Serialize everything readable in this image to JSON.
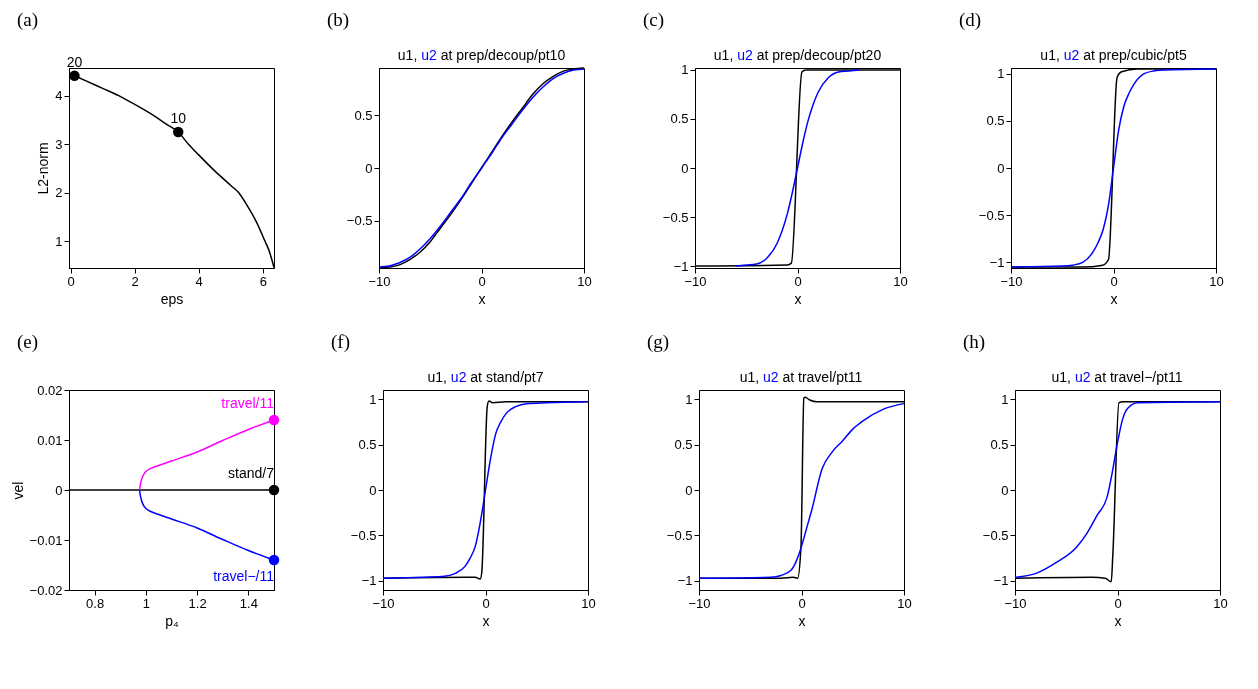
{
  "chart_data": [
    {
      "type": "line",
      "annotations": [
        "(a)",
        {
          "text": "20",
          "x": 0.12,
          "y": 4.41
        },
        {
          "text": "10",
          "x": 3.36,
          "y": 3.25
        }
      ],
      "xlabel": "eps",
      "ylabel": "L2-norm",
      "xlim": [
        -0.05,
        6.35
      ],
      "xticks": [
        0,
        2,
        4,
        6
      ],
      "ylim": [
        0.45,
        4.57
      ],
      "yticks": [
        1,
        2,
        3,
        4
      ],
      "series": [
        {
          "color": "#000000",
          "x": [
            0.12,
            0.5,
            1,
            1.5,
            2,
            2.5,
            3,
            3.36,
            3.68,
            4,
            4.5,
            5,
            5.25,
            5.5,
            5.8,
            6.07,
            6.2,
            6.35
          ],
          "values": [
            4.41,
            4.3,
            4.15,
            4.0,
            3.82,
            3.63,
            3.41,
            3.25,
            3.0,
            2.78,
            2.45,
            2.15,
            2.0,
            1.75,
            1.4,
            1.0,
            0.8,
            0.46
          ]
        },
        {
          "type": "scatter",
          "marker": "circle",
          "color": "#000000",
          "x": [
            0.12,
            3.36
          ],
          "values": [
            4.41,
            3.25
          ]
        }
      ]
    },
    {
      "type": "line",
      "title": "u1, u2 at prep/decoup/pt10",
      "annotations": [
        "(b)"
      ],
      "xlabel": "x",
      "xlim": [
        -10,
        10
      ],
      "xticks": [
        -10,
        0,
        10
      ],
      "ylim": [
        -0.95,
        0.95
      ],
      "yticks": [
        -0.5,
        0,
        0.5
      ],
      "series": [
        {
          "color": "#000000",
          "x": [
            -10,
            -9,
            -8,
            -7,
            -6,
            -5,
            -4,
            -3,
            -2,
            -1,
            0,
            1,
            2,
            3,
            4,
            5,
            6,
            7,
            8,
            9,
            10
          ],
          "values": [
            -0.95,
            -0.94,
            -0.92,
            -0.87,
            -0.8,
            -0.7,
            -0.57,
            -0.44,
            -0.3,
            -0.15,
            0,
            0.15,
            0.3,
            0.44,
            0.57,
            0.7,
            0.8,
            0.87,
            0.92,
            0.94,
            0.95
          ]
        },
        {
          "color": "#0000ff",
          "x": [
            -10,
            -9,
            -8,
            -7,
            -6,
            -5,
            -4,
            -3,
            -2,
            -1,
            0,
            1,
            2,
            3,
            4,
            5,
            6,
            7,
            8,
            9,
            10
          ],
          "values": [
            -0.94,
            -0.93,
            -0.9,
            -0.85,
            -0.77,
            -0.67,
            -0.55,
            -0.42,
            -0.29,
            -0.14,
            0,
            0.14,
            0.29,
            0.42,
            0.55,
            0.67,
            0.77,
            0.85,
            0.9,
            0.93,
            0.94
          ]
        }
      ]
    },
    {
      "type": "line",
      "title": "u1, u2 at prep/decoup/pt20",
      "annotations": [
        "(c)"
      ],
      "xlabel": "x",
      "xlim": [
        -10,
        10
      ],
      "xticks": [
        -10,
        0,
        10
      ],
      "ylim": [
        -1.02,
        1.02
      ],
      "yticks": [
        -1,
        -0.5,
        0,
        0.5,
        1
      ],
      "series": [
        {
          "color": "#000000",
          "x": [
            -10,
            -1,
            -0.6,
            0.43,
            0.8,
            10
          ],
          "values": [
            -1,
            -0.99,
            -0.97,
            0.98,
            1,
            1
          ]
        },
        {
          "color": "#0000ff",
          "x": [
            -6,
            -5,
            -4,
            -3,
            -2,
            -1.5,
            -1,
            -0.5,
            0,
            0.5,
            1,
            1.5,
            2,
            3,
            4,
            5,
            6
          ],
          "values": [
            -1,
            -0.99,
            -0.98,
            -0.92,
            -0.77,
            -0.64,
            -0.47,
            -0.25,
            0,
            0.25,
            0.47,
            0.64,
            0.77,
            0.92,
            0.98,
            0.99,
            1
          ]
        }
      ]
    },
    {
      "type": "line",
      "title": "u1, u2 at prep/cubic/pt5",
      "annotations": [
        "(d)"
      ],
      "xlabel": "x",
      "xlim": [
        -10,
        10
      ],
      "xticks": [
        -10,
        0,
        10
      ],
      "ylim": [
        -1.06,
        1.06
      ],
      "yticks": [
        -1,
        -0.5,
        0,
        0.5,
        1
      ],
      "series": [
        {
          "color": "#000000",
          "x": [
            -10,
            -3,
            -1.06,
            -0.49,
            0.35,
            0.79,
            2.3,
            10
          ],
          "values": [
            -1.05,
            -1.05,
            -1.03,
            -0.97,
            0.96,
            1.02,
            1.05,
            1.05
          ]
        },
        {
          "color": "#0000ff",
          "x": [
            -10,
            -5,
            -4,
            -3,
            -2,
            -1.5,
            -1,
            -0.5,
            0,
            0.5,
            1,
            1.5,
            2,
            3,
            4,
            5,
            10
          ],
          "values": [
            -1.05,
            -1.04,
            -1.03,
            -1.0,
            -0.89,
            -0.79,
            -0.65,
            -0.4,
            0,
            0.4,
            0.65,
            0.79,
            0.89,
            1.0,
            1.03,
            1.04,
            1.05
          ]
        }
      ]
    },
    {
      "type": "line",
      "annotations": [
        "(e)"
      ],
      "xlabel": "p₄",
      "ylabel": "vel",
      "xlim": [
        0.7,
        1.5
      ],
      "xticks": [
        0.8,
        1,
        1.2,
        1.4
      ],
      "ylim": [
        -0.02,
        0.02
      ],
      "yticks": [
        -0.02,
        -0.01,
        0,
        0.01,
        0.02
      ],
      "series": [
        {
          "name": "stand/7",
          "color": "#000000",
          "x": [
            0.7,
            1.5
          ],
          "values": [
            0,
            0
          ]
        },
        {
          "name": "travel/11",
          "color": "#ff00ff",
          "x": [
            0.975,
            0.98,
            1.0,
            1.05,
            1.1,
            1.2,
            1.3,
            1.4,
            1.5
          ],
          "values": [
            0,
            0.0015,
            0.0037,
            0.0049,
            0.0058,
            0.0076,
            0.0099,
            0.0121,
            0.014
          ]
        },
        {
          "name": "travel−/11",
          "color": "#0000ff",
          "x": [
            0.975,
            0.98,
            1.0,
            1.05,
            1.1,
            1.2,
            1.3,
            1.4,
            1.5
          ],
          "values": [
            0,
            -0.0015,
            -0.0037,
            -0.0049,
            -0.0058,
            -0.0076,
            -0.0099,
            -0.0121,
            -0.014
          ]
        },
        {
          "type": "scatter",
          "marker": "circle",
          "color": "#000000",
          "x": [
            1.5
          ],
          "values": [
            0
          ]
        },
        {
          "type": "scatter",
          "marker": "circle",
          "color": "#ff00ff",
          "x": [
            1.5
          ],
          "values": [
            0.014
          ]
        },
        {
          "type": "scatter",
          "marker": "circle",
          "color": "#0000ff",
          "x": [
            1.5
          ],
          "values": [
            -0.014
          ]
        }
      ]
    },
    {
      "type": "line",
      "title": "u1, u2 at stand/pt7",
      "annotations": [
        "(f)"
      ],
      "xlabel": "x",
      "xlim": [
        -10,
        10
      ],
      "xticks": [
        -10,
        0,
        10
      ],
      "ylim": [
        -1.1,
        1.1
      ],
      "yticks": [
        -1,
        -0.5,
        0,
        0.5,
        1
      ],
      "series": [
        {
          "color": "#000000",
          "x": [
            -10,
            -2,
            -1,
            -0.52,
            -0.36,
            0.17,
            0.33,
            0.7,
            2,
            10
          ],
          "values": [
            -0.97,
            -0.96,
            -0.96,
            -0.98,
            -0.9,
            0.92,
            0.98,
            0.96,
            0.97,
            0.97
          ]
        },
        {
          "color": "#0000ff",
          "x": [
            -10,
            -6,
            -4,
            -3,
            -2,
            -1.5,
            -1,
            -0.5,
            0,
            0.5,
            1,
            1.5,
            2,
            3,
            4,
            6,
            10
          ],
          "values": [
            -0.97,
            -0.96,
            -0.95,
            -0.92,
            -0.84,
            -0.75,
            -0.62,
            -0.35,
            0,
            0.35,
            0.62,
            0.75,
            0.84,
            0.92,
            0.95,
            0.96,
            0.97
          ]
        }
      ]
    },
    {
      "type": "line",
      "title": "u1, u2 at travel/pt11",
      "annotations": [
        "(g)"
      ],
      "xlabel": "x",
      "xlim": [
        -10,
        10
      ],
      "xticks": [
        -10,
        0,
        10
      ],
      "ylim": [
        -1.1,
        1.1
      ],
      "yticks": [
        -1,
        -0.5,
        0,
        0.5,
        1
      ],
      "series": [
        {
          "color": "#000000",
          "x": [
            -10,
            -2,
            -0.8,
            -0.38,
            -0.05,
            0.23,
            0.35,
            0.8,
            1.5,
            10
          ],
          "values": [
            -0.97,
            -0.97,
            -0.96,
            -0.97,
            -0.62,
            1.01,
            1.02,
            0.99,
            0.97,
            0.97
          ]
        },
        {
          "color": "#0000ff",
          "x": [
            -10,
            -3,
            -2,
            -1,
            -0.5,
            0,
            0.5,
            1,
            2,
            3,
            4,
            5,
            6,
            8,
            10
          ],
          "values": [
            -0.97,
            -0.96,
            -0.94,
            -0.88,
            -0.78,
            -0.62,
            -0.42,
            -0.22,
            0.23,
            0.42,
            0.54,
            0.67,
            0.76,
            0.89,
            0.95
          ]
        }
      ]
    },
    {
      "type": "line",
      "title": "u1, u2 at travel−/pt11",
      "annotations": [
        "(h)"
      ],
      "xlabel": "x",
      "xlim": [
        -10,
        10
      ],
      "xticks": [
        -10,
        0,
        10
      ],
      "ylim": [
        -1.1,
        1.1
      ],
      "yticks": [
        -1,
        -0.5,
        0,
        0.5,
        1
      ],
      "series": [
        {
          "color": "#000000",
          "x": [
            -10,
            -2.5,
            -1.2,
            -0.61,
            -0.45,
            0.14,
            0.5,
            10
          ],
          "values": [
            -0.97,
            -0.96,
            -0.97,
            -1.01,
            -0.7,
            0.96,
            0.97,
            0.97
          ]
        },
        {
          "color": "#0000ff",
          "x": [
            -10,
            -8,
            -6,
            -4,
            -3,
            -2,
            -1,
            -0.5,
            0,
            0.5,
            1,
            2,
            10
          ],
          "values": [
            -0.96,
            -0.92,
            -0.8,
            -0.63,
            -0.48,
            -0.28,
            -0.07,
            0.2,
            0.52,
            0.78,
            0.9,
            0.96,
            0.97
          ]
        }
      ]
    }
  ]
}
